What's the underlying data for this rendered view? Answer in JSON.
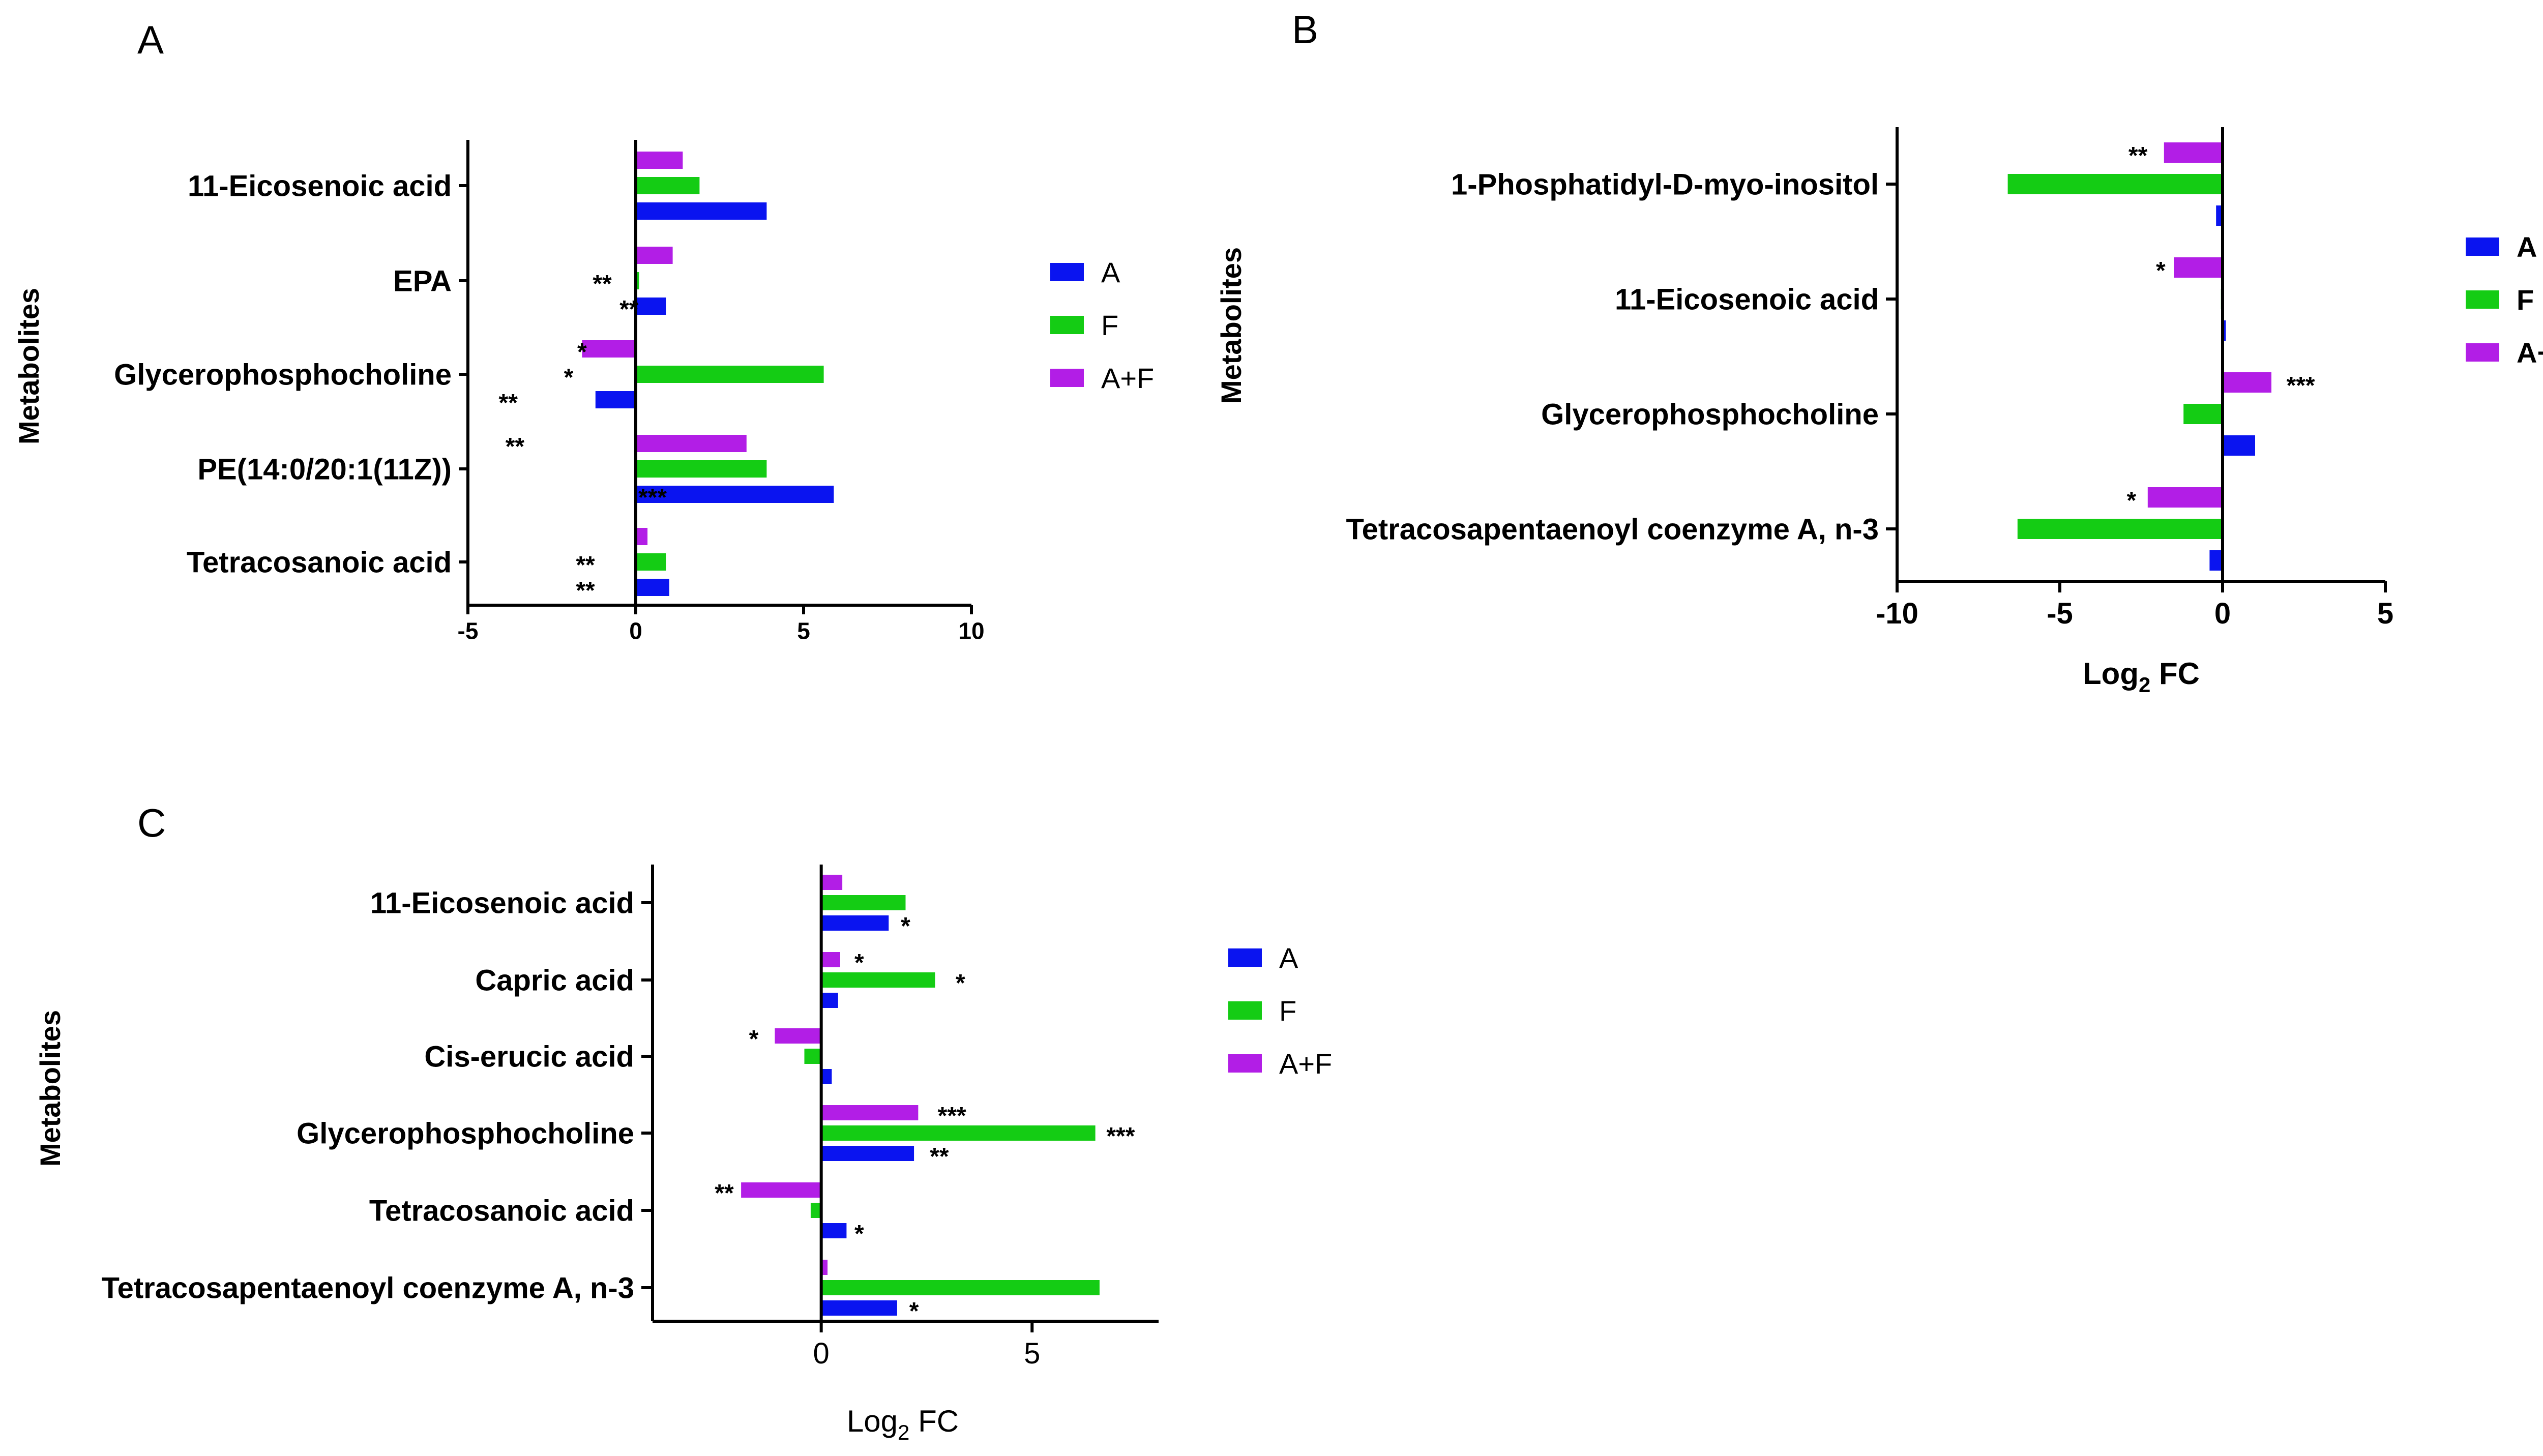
{
  "figure": {
    "series_colors": {
      "A": "#0a14f0",
      "F": "#14cc14",
      "A+F": "#b21ee6"
    }
  },
  "chart_data": [
    {
      "panel": "A",
      "type": "bar",
      "orientation": "horizontal",
      "title": "A",
      "xlabel": "",
      "ylabel": "Metabolites",
      "xlim": [
        -5,
        10
      ],
      "xticks": [
        -5,
        0,
        5,
        10
      ],
      "categories": [
        "11-Eicosenoic acid",
        "EPA",
        "Glycerophosphocholine",
        "PE(14:0/20:1(11Z))",
        "Tetracosanoic acid"
      ],
      "series": [
        {
          "name": "A",
          "values": [
            3.9,
            0.9,
            -1.2,
            5.9,
            1.0
          ]
        },
        {
          "name": "F",
          "values": [
            1.9,
            0.1,
            5.6,
            3.9,
            0.9
          ]
        },
        {
          "name": "A+F",
          "values": [
            1.4,
            1.1,
            -1.6,
            3.3,
            0.35
          ]
        }
      ],
      "annotations": [
        {
          "category": 1,
          "series": "F",
          "text": "**",
          "x": -1.0
        },
        {
          "category": 1,
          "series": "A",
          "text": "**",
          "x": -0.2
        },
        {
          "category": 2,
          "series": "A+F",
          "text": "*",
          "x": -1.6
        },
        {
          "category": 2,
          "series": "F",
          "text": "*",
          "x": -2.0
        },
        {
          "category": 2,
          "series": "A",
          "text": "**",
          "x": -3.8
        },
        {
          "category": 3,
          "series": "A+F",
          "text": "**",
          "x": -3.6
        },
        {
          "category": 3,
          "series": "A",
          "text": "***",
          "x": 0.5
        },
        {
          "category": 4,
          "series": "F",
          "text": "**",
          "x": -1.5
        },
        {
          "category": 4,
          "series": "A",
          "text": "**",
          "x": -1.5
        }
      ],
      "legend": [
        "A",
        "F",
        "A+F"
      ],
      "legend_position": "right"
    },
    {
      "panel": "B",
      "type": "bar",
      "orientation": "horizontal",
      "title": "B",
      "xlabel": "Log",
      "xlabel_sub": "2",
      "xlabel_suffix": " FC",
      "ylabel": "Metabolites",
      "xlim": [
        -10,
        5
      ],
      "xticks": [
        -10,
        -5,
        0,
        5
      ],
      "categories": [
        "1-Phosphatidyl-D-myo-inositol",
        "11-Eicosenoic acid",
        "Glycerophosphocholine",
        "Tetracosapentaenoyl coenzyme A, n-3"
      ],
      "series": [
        {
          "name": "A+F",
          "values": [
            -1.8,
            -1.5,
            1.5,
            -2.3
          ]
        },
        {
          "name": "F",
          "values": [
            -6.6,
            -0.05,
            -1.2,
            -6.3
          ]
        },
        {
          "name": "A",
          "values": [
            -0.2,
            0.1,
            1.0,
            -0.4
          ]
        }
      ],
      "annotations": [
        {
          "category": 0,
          "series": "A+F",
          "text": "**",
          "x": -2.6
        },
        {
          "category": 1,
          "series": "A+F",
          "text": "*",
          "x": -1.9
        },
        {
          "category": 2,
          "series": "A+F",
          "text": "***",
          "x": 2.4
        },
        {
          "category": 3,
          "series": "A+F",
          "text": "*",
          "x": -2.8
        }
      ],
      "legend": [
        "A",
        "F",
        "A+F"
      ],
      "legend_position": "right"
    },
    {
      "panel": "C",
      "type": "bar",
      "orientation": "horizontal",
      "title": "C",
      "xlabel": "Log",
      "xlabel_sub": "2",
      "xlabel_suffix": " FC",
      "ylabel": "Metabolites",
      "xlim": [
        -4,
        8
      ],
      "xticks": [
        0,
        5
      ],
      "categories": [
        "11-Eicosenoic acid",
        "Capric acid",
        "Cis-erucic acid",
        "Glycerophosphocholine",
        "Tetracosanoic acid",
        "Tetracosapentaenoyl coenzyme A, n-3"
      ],
      "series": [
        {
          "name": "A+F",
          "values": [
            0.5,
            0.45,
            -1.1,
            2.3,
            -1.9,
            0.15
          ]
        },
        {
          "name": "F",
          "values": [
            2.0,
            2.7,
            -0.4,
            6.5,
            -0.25,
            6.6
          ]
        },
        {
          "name": "A",
          "values": [
            1.6,
            0.4,
            0.25,
            2.2,
            0.6,
            1.8
          ]
        }
      ],
      "annotations": [
        {
          "category": 0,
          "series": "A",
          "text": "*",
          "x": 2.0
        },
        {
          "category": 1,
          "series": "A+F",
          "text": "*",
          "x": 0.9
        },
        {
          "category": 1,
          "series": "F",
          "text": "*",
          "x": 3.3
        },
        {
          "category": 2,
          "series": "A+F",
          "text": "*",
          "x": -1.6
        },
        {
          "category": 3,
          "series": "A+F",
          "text": "***",
          "x": 3.1
        },
        {
          "category": 3,
          "series": "F",
          "text": "***",
          "x": 7.1
        },
        {
          "category": 3,
          "series": "A",
          "text": "**",
          "x": 2.8
        },
        {
          "category": 4,
          "series": "A+F",
          "text": "**",
          "x": -2.3
        },
        {
          "category": 4,
          "series": "A",
          "text": "*",
          "x": 0.9
        },
        {
          "category": 5,
          "series": "A",
          "text": "*",
          "x": 2.2
        }
      ],
      "legend": [
        "A",
        "F",
        "A+F"
      ],
      "legend_position": "right"
    }
  ]
}
